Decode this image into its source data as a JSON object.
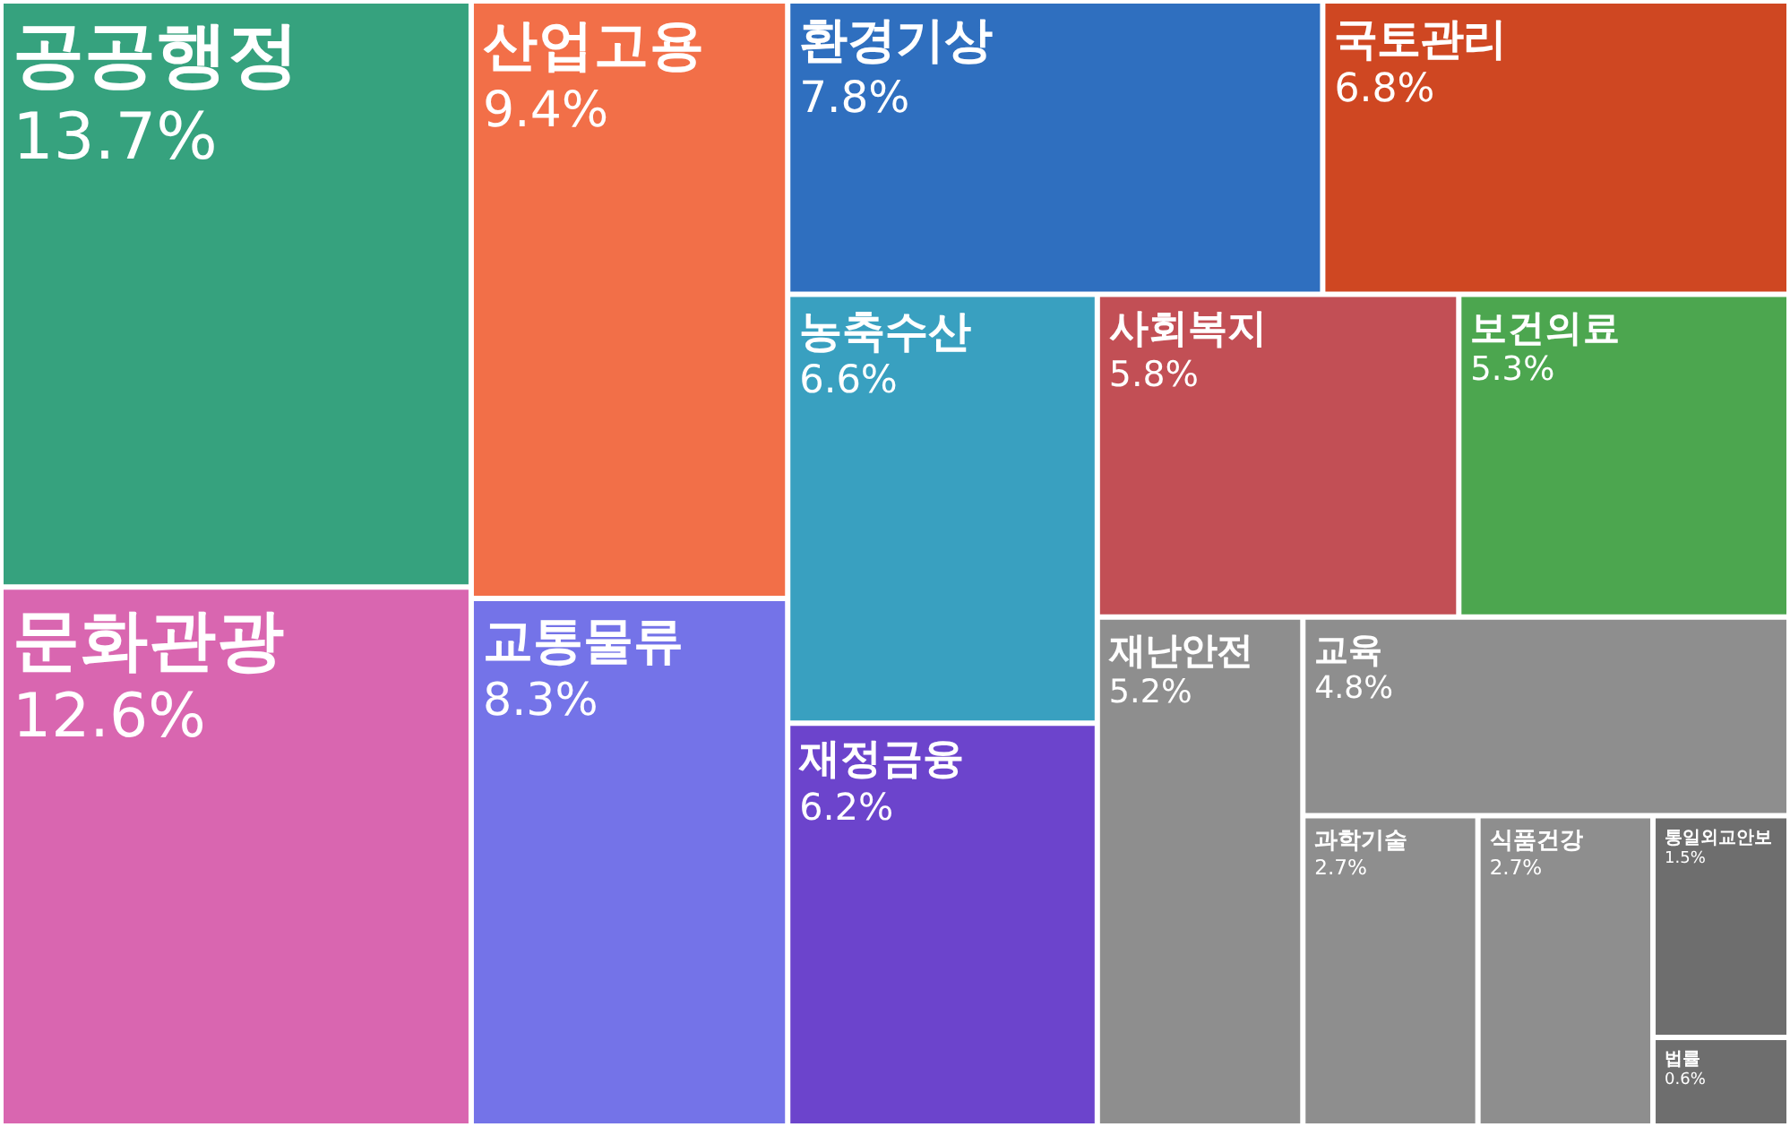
{
  "chart_data": {
    "type": "other",
    "categories": [
      "공공행정",
      "문화관광",
      "산업고용",
      "교통물류",
      "환경기상",
      "국토관리",
      "농축수산",
      "재정금융",
      "사회복지",
      "보건의료",
      "재난안전",
      "교육",
      "식품건강",
      "과학기술",
      "통일외교안보",
      "법률"
    ],
    "values": [
      13.7,
      12.6,
      9.4,
      8.3,
      7.8,
      6.8,
      6.6,
      6.2,
      5.8,
      5.3,
      5.2,
      4.8,
      2.7,
      2.7,
      1.5,
      0.6
    ],
    "value_labels": [
      "13.7%",
      "12.6%",
      "9.4%",
      "8.3%",
      "7.8%",
      "6.8%",
      "6.6%",
      "6.2%",
      "5.8%",
      "5.3%",
      "5.2%",
      "4.8%",
      "2.7%",
      "2.7%",
      "1.5%",
      "0.6%"
    ],
    "colors": [
      "#36a27e",
      "#d966b0",
      "#f26f48",
      "#7473e8",
      "#2f6fbf",
      "#cf4722",
      "#39a0c0",
      "#6c44cc",
      "#c24f55",
      "#4ca64f",
      "#8e8e8e",
      "#8e8e8e",
      "#8e8e8e",
      "#8e8e8e",
      "#6e6e6e",
      "#6e6e6e"
    ]
  }
}
